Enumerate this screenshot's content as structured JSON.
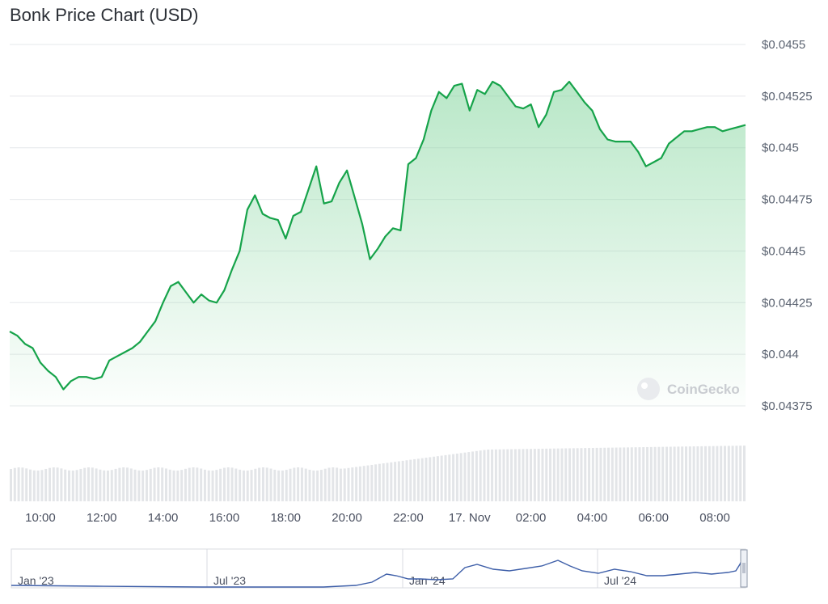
{
  "title": "Bonk Price Chart (USD)",
  "watermark": "CoinGecko",
  "colors": {
    "line": "#16a34a",
    "fill_top": "#7fd49a",
    "grid": "#e6e8eb",
    "volume": "#e3e5e8",
    "navigator_line": "#3d5ea8"
  },
  "chart_data": {
    "type": "line",
    "title": "Bonk Price Chart (USD)",
    "y_ticks": [
      "$0.0455",
      "$0.04525",
      "$0.045",
      "$0.04475",
      "$0.0445",
      "$0.04425",
      "$0.044",
      "$0.04375"
    ],
    "ylim": [
      0.04375,
      0.0455
    ],
    "x_ticks": [
      "10:00",
      "12:00",
      "14:00",
      "16:00",
      "18:00",
      "20:00",
      "22:00",
      "17. Nov",
      "02:00",
      "04:00",
      "06:00",
      "08:00"
    ],
    "x_hours": [
      10,
      12,
      14,
      16,
      18,
      20,
      22,
      24,
      26,
      28,
      30,
      32
    ],
    "xlim": [
      9.0,
      33.0
    ],
    "series": [
      {
        "x": [
          9.0,
          9.25,
          9.5,
          9.75,
          10.0,
          10.25,
          10.5,
          10.75,
          11.0,
          11.25,
          11.5,
          11.75,
          12.0,
          12.25,
          12.5,
          12.75,
          13.0,
          13.25,
          13.5,
          13.75,
          14.0,
          14.25,
          14.5,
          14.75,
          15.0,
          15.25,
          15.5,
          15.75,
          16.0,
          16.25,
          16.5,
          16.75,
          17.0,
          17.25,
          17.5,
          17.75,
          18.0,
          18.25,
          18.5,
          18.75,
          19.0,
          19.25,
          19.5,
          19.75,
          20.0,
          20.25,
          20.5,
          20.75,
          21.0,
          21.25,
          21.5,
          21.75,
          22.0,
          22.25,
          22.5,
          22.75,
          23.0,
          23.25,
          23.5,
          23.75,
          24.0,
          24.25,
          24.5,
          24.75,
          25.0,
          25.25,
          25.5,
          25.75,
          26.0,
          26.25,
          26.5,
          26.75,
          27.0,
          27.25,
          27.5,
          27.75,
          28.0,
          28.25,
          28.5,
          28.75,
          29.0,
          29.25,
          29.5,
          29.75,
          30.0,
          30.25,
          30.5,
          30.75,
          31.0,
          31.25,
          31.5,
          31.75,
          32.0,
          32.25,
          32.5,
          32.75,
          33.0
        ],
        "values": [
          0.04411,
          0.04409,
          0.04405,
          0.04403,
          0.04396,
          0.04392,
          0.04389,
          0.04383,
          0.04387,
          0.04389,
          0.04389,
          0.04388,
          0.04389,
          0.04397,
          0.04399,
          0.04401,
          0.04403,
          0.04406,
          0.04411,
          0.04416,
          0.04425,
          0.04433,
          0.04435,
          0.0443,
          0.04425,
          0.04429,
          0.04426,
          0.04425,
          0.04431,
          0.04441,
          0.0445,
          0.0447,
          0.04477,
          0.04468,
          0.04466,
          0.04465,
          0.04456,
          0.04467,
          0.04469,
          0.0448,
          0.04491,
          0.04473,
          0.04474,
          0.04483,
          0.04489,
          0.04476,
          0.04463,
          0.04446,
          0.04451,
          0.04457,
          0.04461,
          0.0446,
          0.04492,
          0.04495,
          0.04504,
          0.04518,
          0.04527,
          0.04524,
          0.0453,
          0.04531,
          0.04518,
          0.04528,
          0.04526,
          0.04532,
          0.0453,
          0.04525,
          0.0452,
          0.04519,
          0.04521,
          0.0451,
          0.04516,
          0.04527,
          0.04528,
          0.04532,
          0.04527,
          0.04522,
          0.04518,
          0.04509,
          0.04504,
          0.04503,
          0.04503,
          0.04503,
          0.04498,
          0.04491,
          0.04493,
          0.04495,
          0.04502,
          0.04505,
          0.04508,
          0.04508,
          0.04509,
          0.0451,
          0.0451,
          0.04508,
          0.04509,
          0.0451,
          0.04511
        ]
      }
    ],
    "navigator": {
      "x_ticks": [
        "Jan '23",
        "Jul '23",
        "Jan '24",
        "Jul '24"
      ]
    },
    "grid": true
  }
}
